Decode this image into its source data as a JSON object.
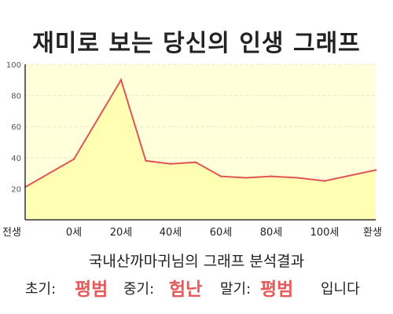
{
  "title": "재미로 보는 당신의 인생 그래프",
  "summary": "국내산까마귀님의 그래프 분석결과",
  "result": {
    "early_label": "초기:",
    "early_value": "평범",
    "mid_label": "중기:",
    "mid_value": "험난",
    "late_label": "말기:",
    "late_value": "평범",
    "suffix": "입니다"
  },
  "colors": {
    "plot_fill": "#ffffd9",
    "area_fill": "#ffffb3",
    "line": "#e05555",
    "highlight": "#e55a5a",
    "axis": "#333333",
    "grid": "#e8e8cc"
  },
  "chart_data": {
    "type": "area",
    "title": "재미로 보는 당신의 인생 그래프",
    "xlabel": "",
    "ylabel": "",
    "ylim": [
      0,
      100
    ],
    "yticks": [
      20,
      40,
      60,
      80,
      100
    ],
    "categories": [
      "전생",
      "0세",
      "20세",
      "40세",
      "60세",
      "80세",
      "100세",
      "환생"
    ],
    "x": [
      -1,
      0,
      20,
      40,
      60,
      80,
      100,
      101
    ],
    "points": [
      {
        "x": -1,
        "y": 21
      },
      {
        "x": 0,
        "y": 39
      },
      {
        "x": 20,
        "y": 90
      },
      {
        "x": 30,
        "y": 38
      },
      {
        "x": 40,
        "y": 36
      },
      {
        "x": 50,
        "y": 37
      },
      {
        "x": 60,
        "y": 28
      },
      {
        "x": 70,
        "y": 27
      },
      {
        "x": 80,
        "y": 28
      },
      {
        "x": 90,
        "y": 27
      },
      {
        "x": 100,
        "y": 25
      },
      {
        "x": 101,
        "y": 32
      }
    ],
    "grid": true,
    "legend": "none"
  }
}
